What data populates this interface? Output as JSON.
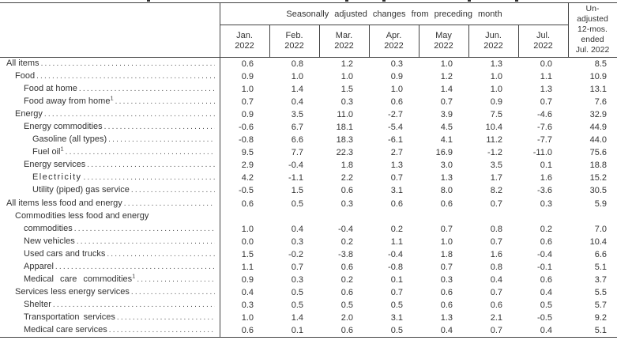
{
  "header": {
    "group_label": "Seasonally adjusted changes from preceding month",
    "months": [
      {
        "line1": "Jan.",
        "line2": "2022"
      },
      {
        "line1": "Feb.",
        "line2": "2022"
      },
      {
        "line1": "Mar.",
        "line2": "2022"
      },
      {
        "line1": "Apr.",
        "line2": "2022"
      },
      {
        "line1": "May",
        "line2": "2022"
      },
      {
        "line1": "Jun.",
        "line2": "2022"
      },
      {
        "line1": "Jul.",
        "line2": "2022"
      }
    ],
    "unadjusted_lines": [
      "Un-",
      "adjusted",
      "12-mos.",
      "ended",
      "Jul. 2022"
    ]
  },
  "table": {
    "rows": [
      {
        "label": "All items",
        "indent": 0,
        "values": [
          "0.6",
          "0.8",
          "1.2",
          "0.3",
          "1.0",
          "1.3",
          "0.0",
          "8.5"
        ]
      },
      {
        "label": "Food",
        "indent": 1,
        "values": [
          "0.9",
          "1.0",
          "1.0",
          "0.9",
          "1.2",
          "1.0",
          "1.1",
          "10.9"
        ]
      },
      {
        "label": "Food at home",
        "indent": 2,
        "values": [
          "1.0",
          "1.4",
          "1.5",
          "1.0",
          "1.4",
          "1.0",
          "1.3",
          "13.1"
        ]
      },
      {
        "label": "Food away from home",
        "sup": "1",
        "indent": 2,
        "values": [
          "0.7",
          "0.4",
          "0.3",
          "0.6",
          "0.7",
          "0.9",
          "0.7",
          "7.6"
        ]
      },
      {
        "label": "Energy",
        "indent": 1,
        "values": [
          "0.9",
          "3.5",
          "11.0",
          "-2.7",
          "3.9",
          "7.5",
          "-4.6",
          "32.9"
        ]
      },
      {
        "label": "Energy commodities",
        "indent": 2,
        "values": [
          "-0.6",
          "6.7",
          "18.1",
          "-5.4",
          "4.5",
          "10.4",
          "-7.6",
          "44.9"
        ]
      },
      {
        "label": "Gasoline (all types)",
        "indent": 3,
        "values": [
          "-0.8",
          "6.6",
          "18.3",
          "-6.1",
          "4.1",
          "11.2",
          "-7.7",
          "44.0"
        ]
      },
      {
        "label": "Fuel oil",
        "sup": "1",
        "indent": 3,
        "values": [
          "9.5",
          "7.7",
          "22.3",
          "2.7",
          "16.9",
          "-1.2",
          "-11.0",
          "75.6"
        ]
      },
      {
        "label": "Energy services",
        "indent": 2,
        "values": [
          "2.9",
          "-0.4",
          "1.8",
          "1.3",
          "3.0",
          "3.5",
          "0.1",
          "18.8"
        ]
      },
      {
        "label": "Electricity",
        "ls": 1.4,
        "indent": 3,
        "values": [
          "4.2",
          "-1.1",
          "2.2",
          "0.7",
          "1.3",
          "1.7",
          "1.6",
          "15.2"
        ]
      },
      {
        "label": "Utility (piped) gas service",
        "indent": 3,
        "values": [
          "-0.5",
          "1.5",
          "0.6",
          "3.1",
          "8.0",
          "8.2",
          "-3.6",
          "30.5"
        ]
      },
      {
        "label": "All items less food and energy",
        "indent": 0,
        "values": [
          "0.6",
          "0.5",
          "0.3",
          "0.6",
          "0.6",
          "0.7",
          "0.3",
          "5.9"
        ]
      },
      {
        "label": "Commodities less food and energy",
        "label2": "commodities",
        "indent": 1,
        "values": [
          "1.0",
          "0.4",
          "-0.4",
          "0.2",
          "0.7",
          "0.8",
          "0.2",
          "7.0"
        ]
      },
      {
        "label": "New vehicles",
        "indent": 2,
        "values": [
          "0.0",
          "0.3",
          "0.2",
          "1.1",
          "1.0",
          "0.7",
          "0.6",
          "10.4"
        ]
      },
      {
        "label": "Used cars and trucks",
        "indent": 2,
        "values": [
          "1.5",
          "-0.2",
          "-3.8",
          "-0.4",
          "1.8",
          "1.6",
          "-0.4",
          "6.6"
        ]
      },
      {
        "label": "Apparel",
        "indent": 2,
        "values": [
          "1.1",
          "0.7",
          "0.6",
          "-0.8",
          "0.7",
          "0.8",
          "-0.1",
          "5.1"
        ]
      },
      {
        "label": "Medical care commodities",
        "sup": "1",
        "ws": 5,
        "indent": 2,
        "values": [
          "0.9",
          "0.3",
          "0.2",
          "0.1",
          "0.3",
          "0.4",
          "0.6",
          "3.7"
        ]
      },
      {
        "label": "Services less energy services",
        "indent": 1,
        "values": [
          "0.4",
          "0.5",
          "0.6",
          "0.7",
          "0.6",
          "0.7",
          "0.4",
          "5.5"
        ]
      },
      {
        "label": "Shelter",
        "indent": 2,
        "values": [
          "0.3",
          "0.5",
          "0.5",
          "0.5",
          "0.6",
          "0.6",
          "0.5",
          "5.7"
        ]
      },
      {
        "label": "Transportation services",
        "ws": 2,
        "indent": 2,
        "values": [
          "1.0",
          "1.4",
          "2.0",
          "3.1",
          "1.3",
          "2.1",
          "-0.5",
          "9.2"
        ]
      },
      {
        "label": "Medical care services",
        "indent": 2,
        "values": [
          "0.6",
          "0.1",
          "0.6",
          "0.5",
          "0.4",
          "0.7",
          "0.4",
          "5.1"
        ]
      }
    ]
  },
  "colors": {
    "background": "#ffffff",
    "border": "#424242",
    "text": "#333333"
  }
}
